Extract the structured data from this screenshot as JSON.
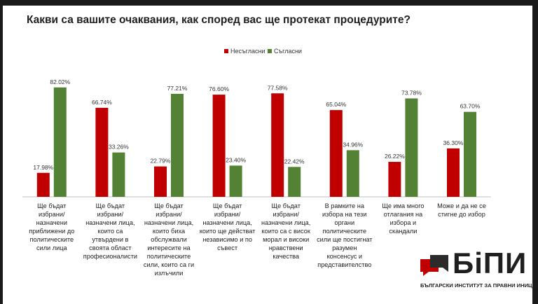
{
  "chart_data": {
    "type": "bar",
    "title": "Какви са вашите очаквания, как според вас ще протекат процедурите?",
    "categories": [
      "Ще бъдат избрани/назначени приближени до политическите сили лица",
      "Ще бъдат избрани/назначени лица, които са утвърдени в своята област професионалисти",
      "Ще бъдат избрани/назначени лица, които биха обслужвали интересите на политическите сили, които са ги излъчили",
      "Ще бъдат избрани/назначени лица, които ще действат независимо и по съвест",
      "Ще бъдат избрани/назначени лица, които са с висок морал и високи нравствени качества",
      "В рамките на избора на тези органи политическите сили ще постигнат разумен консенсус и представителство",
      "Ще има много отлагания на избора и скандали",
      "Може и да не се стигне до избор"
    ],
    "series": [
      {
        "name": "Несъгласни",
        "color": "#c00000",
        "values": [
          17.98,
          66.74,
          22.79,
          76.6,
          77.58,
          65.04,
          26.22,
          36.3
        ],
        "labels": [
          "17.98%",
          "66.74%",
          "22.79%",
          "76.60%",
          "77.58%",
          "65.04%",
          "26.22%",
          "36.30%"
        ]
      },
      {
        "name": "Съгласни",
        "color": "#548235",
        "values": [
          82.02,
          33.26,
          77.21,
          23.4,
          22.42,
          34.96,
          73.78,
          63.7
        ],
        "labels": [
          "82.02%",
          "33.26%",
          "77.21%",
          "23.40%",
          "22.42%",
          "34.96%",
          "73.78%",
          "63.70%"
        ]
      }
    ],
    "ylim": [
      0,
      100
    ],
    "grid": false,
    "legend": "top-center"
  },
  "logo": {
    "text": "БiПИ",
    "subtitle": "БЪЛГАРСКИ ИНСТИТУТ ЗА ПРАВНИ ИНИЦИАТИВИ"
  }
}
